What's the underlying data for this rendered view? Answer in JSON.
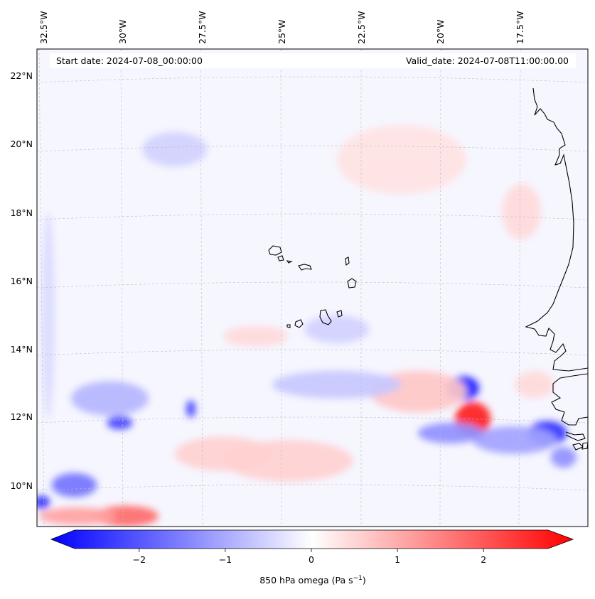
{
  "header": {
    "start_date": "Start date: 2024-07-08_00:00:00",
    "valid_date": "Valid_date: 2024-07-08T11:00:00.00"
  },
  "longitude_labels": [
    "32.5°W",
    "30°W",
    "27.5°W",
    "25°W",
    "22.5°W",
    "20°W",
    "17.5°W"
  ],
  "latitude_labels": [
    "22°N",
    "20°N",
    "18°N",
    "16°N",
    "14°N",
    "12°N",
    "10°N"
  ],
  "colorbar": {
    "label": "850 hPa omega (Pa s",
    "label_exp": "−1",
    "label_close": ")",
    "range": [
      -2.75,
      2.75
    ],
    "ticks": [
      {
        "value": -2,
        "label": "−2"
      },
      {
        "value": -1,
        "label": "−1"
      },
      {
        "value": 0,
        "label": "0"
      },
      {
        "value": 1,
        "label": "1"
      },
      {
        "value": 2,
        "label": "2"
      }
    ],
    "colors": {
      "negative": "#0000ff",
      "zero": "#ffffff",
      "positive": "#ff0000"
    }
  },
  "map": {
    "background_tint": "#f6f6ff",
    "coast_color": "#000000",
    "grid_color": "#bbbbbb"
  },
  "chart_data": {
    "type": "heatmap",
    "variable": "850 hPa omega",
    "units": "Pa s^-1",
    "lon_range": [
      -32.75,
      -15.75
    ],
    "lat_range": [
      8.9,
      22.7
    ],
    "features": [
      {
        "lon": -19.6,
        "lat": 12.9,
        "value": -2.4,
        "rx": 0.5,
        "ry": 0.35
      },
      {
        "lon": -19.3,
        "lat": 12.0,
        "value": 2.4,
        "rx": 0.55,
        "ry": 0.5
      },
      {
        "lon": -17.0,
        "lat": 11.6,
        "value": -2.3,
        "rx": 0.6,
        "ry": 0.35
      },
      {
        "lon": -18.0,
        "lat": 11.4,
        "value": -1.0,
        "rx": 1.3,
        "ry": 0.4
      },
      {
        "lon": -20.0,
        "lat": 11.6,
        "value": -1.2,
        "rx": 1.0,
        "ry": 0.3
      },
      {
        "lon": -16.5,
        "lat": 10.9,
        "value": -1.2,
        "rx": 0.4,
        "ry": 0.3
      },
      {
        "lon": -30.2,
        "lat": 11.9,
        "value": -2.0,
        "rx": 0.4,
        "ry": 0.2
      },
      {
        "lon": -28.0,
        "lat": 12.3,
        "value": -2.0,
        "rx": 0.15,
        "ry": 0.25
      },
      {
        "lon": -31.6,
        "lat": 10.1,
        "value": -1.5,
        "rx": 0.7,
        "ry": 0.35
      },
      {
        "lon": -32.6,
        "lat": 9.6,
        "value": -2.2,
        "rx": 0.25,
        "ry": 0.2
      },
      {
        "lon": -30.0,
        "lat": 9.2,
        "value": 1.6,
        "rx": 1.0,
        "ry": 0.3
      },
      {
        "lon": -31.5,
        "lat": 9.2,
        "value": 1.0,
        "rx": 1.2,
        "ry": 0.25
      },
      {
        "lon": -30.5,
        "lat": 12.6,
        "value": -0.8,
        "rx": 1.2,
        "ry": 0.5
      },
      {
        "lon": -21.0,
        "lat": 12.8,
        "value": 0.6,
        "rx": 1.5,
        "ry": 0.6
      },
      {
        "lon": -23.5,
        "lat": 13.0,
        "value": -0.6,
        "rx": 2.0,
        "ry": 0.4
      },
      {
        "lon": -25.0,
        "lat": 10.8,
        "value": 0.5,
        "rx": 2.0,
        "ry": 0.6
      },
      {
        "lon": -27.0,
        "lat": 11.0,
        "value": 0.5,
        "rx": 1.5,
        "ry": 0.5
      },
      {
        "lon": -28.5,
        "lat": 19.8,
        "value": -0.5,
        "rx": 1.0,
        "ry": 0.5
      },
      {
        "lon": -21.5,
        "lat": 19.5,
        "value": 0.3,
        "rx": 2.0,
        "ry": 1.0
      },
      {
        "lon": -17.8,
        "lat": 18.0,
        "value": 0.4,
        "rx": 0.6,
        "ry": 0.8
      },
      {
        "lon": -32.4,
        "lat": 15.0,
        "value": -0.4,
        "rx": 0.2,
        "ry": 3.0
      },
      {
        "lon": -23.5,
        "lat": 14.6,
        "value": -0.5,
        "rx": 1.0,
        "ry": 0.4
      },
      {
        "lon": -26.0,
        "lat": 14.4,
        "value": 0.4,
        "rx": 1.0,
        "ry": 0.3
      },
      {
        "lon": -17.4,
        "lat": 13.0,
        "value": 0.4,
        "rx": 0.6,
        "ry": 0.4
      }
    ]
  }
}
